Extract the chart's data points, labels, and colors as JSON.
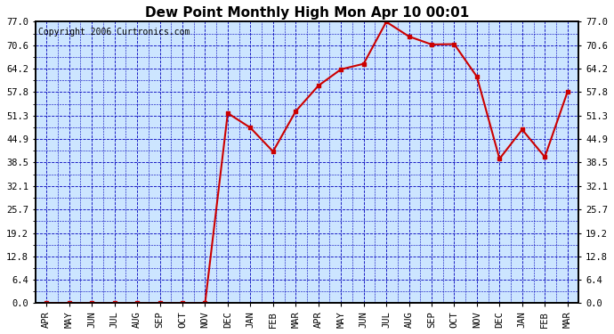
{
  "title": "Dew Point Monthly High Mon Apr 10 00:01",
  "copyright": "Copyright 2006 Curtronics.com",
  "months": [
    "APR",
    "MAY",
    "JUN",
    "JUL",
    "AUG",
    "SEP",
    "OCT",
    "NOV",
    "DEC",
    "JAN",
    "FEB",
    "MAR",
    "APR",
    "MAY",
    "JUN",
    "JUL",
    "AUG",
    "SEP",
    "OCT",
    "NOV",
    "DEC",
    "JAN",
    "FEB",
    "MAR"
  ],
  "values": [
    0.0,
    0.0,
    0.0,
    0.0,
    0.0,
    0.0,
    0.0,
    0.0,
    52.0,
    48.0,
    41.5,
    52.5,
    59.5,
    64.0,
    65.5,
    77.0,
    73.0,
    70.8,
    70.9,
    62.0,
    39.5,
    47.5,
    40.0,
    57.8
  ],
  "ylim": [
    0.0,
    77.0
  ],
  "yticks": [
    0.0,
    6.4,
    12.8,
    19.2,
    25.7,
    32.1,
    38.5,
    44.9,
    51.3,
    57.8,
    64.2,
    70.6,
    77.0
  ],
  "line_color": "#cc0000",
  "marker_color": "#cc0000",
  "outer_bg_color": "#ffffff",
  "plot_bg_color": "#cce5ff",
  "grid_color": "#0000bb",
  "border_color": "#000000",
  "title_fontsize": 11,
  "copyright_fontsize": 7,
  "tick_fontsize": 7.5
}
